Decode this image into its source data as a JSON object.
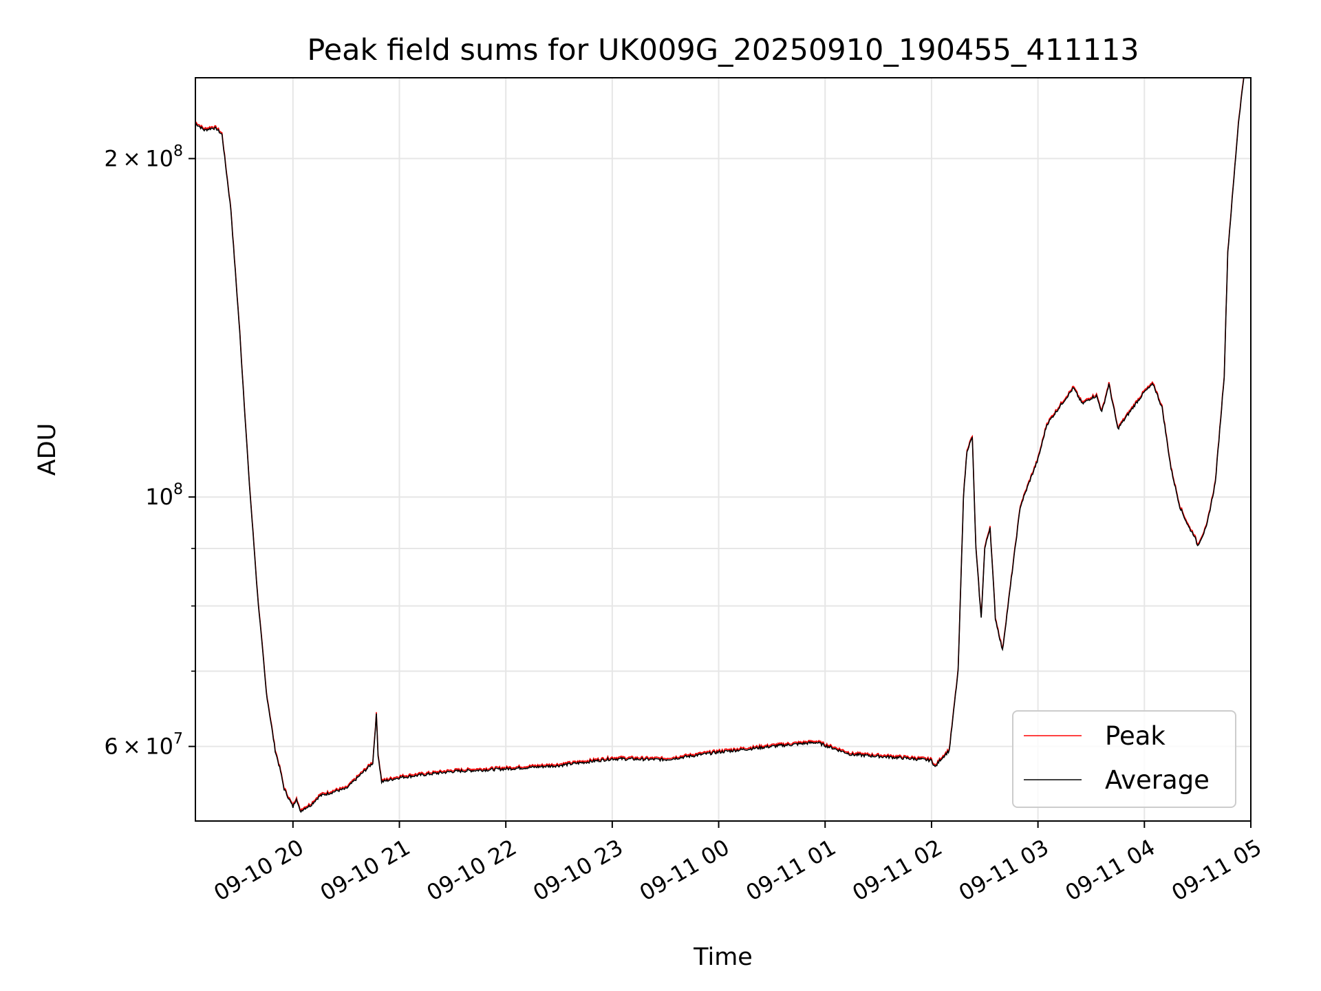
{
  "chart_data": {
    "type": "line",
    "title": "Peak field sums for UK009G_20250910_190455_411113",
    "xlabel": "Time",
    "ylabel": "ADU",
    "y_scale": "log",
    "ylim": [
      51500000,
      236000000
    ],
    "xlim": [
      "09-10 19:05",
      "09-11 05:00"
    ],
    "x_ticks": [
      "09-10 20",
      "09-10 21",
      "09-10 22",
      "09-10 23",
      "09-11 00",
      "09-11 01",
      "09-11 02",
      "09-11 03",
      "09-11 04",
      "09-11 05"
    ],
    "y_ticks": [
      {
        "value": 60000000,
        "mantissa": "6",
        "exponent": "7"
      },
      {
        "value": 100000000,
        "mantissa": "",
        "exponent": "8"
      },
      {
        "value": 200000000,
        "mantissa": "2",
        "exponent": "8"
      }
    ],
    "y_minor_ticks": [
      70000000,
      80000000,
      90000000
    ],
    "grid": true,
    "legend_position": "lower-right",
    "series": [
      {
        "name": "Peak",
        "color": "#ff0000"
      },
      {
        "name": "Average",
        "color": "#000000"
      }
    ],
    "x": [
      "09-10 19:05",
      "09-10 19:10",
      "09-10 19:15",
      "09-10 19:17",
      "09-10 19:20",
      "09-10 19:25",
      "09-10 19:30",
      "09-10 19:35",
      "09-10 19:40",
      "09-10 19:45",
      "09-10 19:50",
      "09-10 19:53",
      "09-10 19:55",
      "09-10 20:00",
      "09-10 20:02",
      "09-10 20:04",
      "09-10 20:06",
      "09-10 20:10",
      "09-10 20:15",
      "09-10 20:20",
      "09-10 20:25",
      "09-10 20:30",
      "09-10 20:35",
      "09-10 20:45",
      "09-10 20:47",
      "09-10 20:48",
      "09-10 20:50",
      "09-10 21:00",
      "09-10 21:30",
      "09-10 22:00",
      "09-10 22:30",
      "09-10 23:00",
      "09-10 23:30",
      "09-11 00:00",
      "09-11 00:30",
      "09-11 00:55",
      "09-11 01:15",
      "09-11 01:30",
      "09-11 01:50",
      "09-11 02:00",
      "09-11 02:02",
      "09-11 02:05",
      "09-11 02:10",
      "09-11 02:15",
      "09-11 02:18",
      "09-11 02:20",
      "09-11 02:23",
      "09-11 02:25",
      "09-11 02:28",
      "09-11 02:30",
      "09-11 02:33",
      "09-11 02:36",
      "09-11 02:40",
      "09-11 02:50",
      "09-11 02:55",
      "09-11 03:00",
      "09-11 03:05",
      "09-11 03:15",
      "09-11 03:20",
      "09-11 03:25",
      "09-11 03:30",
      "09-11 03:33",
      "09-11 03:36",
      "09-11 03:40",
      "09-11 03:45",
      "09-11 03:55",
      "09-11 04:00",
      "09-11 04:05",
      "09-11 04:10",
      "09-11 04:15",
      "09-11 04:20",
      "09-11 04:25",
      "09-11 04:28",
      "09-11 04:30",
      "09-11 04:35",
      "09-11 04:40",
      "09-11 04:45",
      "09-11 04:47",
      "09-11 04:50",
      "09-11 04:53",
      "09-11 04:56"
    ],
    "average": [
      215000000,
      212000000,
      213000000,
      212500000,
      210000000,
      180000000,
      140000000,
      105000000,
      82000000,
      67000000,
      59500000,
      57000000,
      55000000,
      53000000,
      54000000,
      52500000,
      52800000,
      53200000,
      54200000,
      54500000,
      54800000,
      55000000,
      56000000,
      58000000,
      64000000,
      59000000,
      55800000,
      56300000,
      57000000,
      57300000,
      57700000,
      58500000,
      58400000,
      59300000,
      60000000,
      60500000,
      59000000,
      58800000,
      58500000,
      58300000,
      57500000,
      58400000,
      59500000,
      70000000,
      100000000,
      110000000,
      113000000,
      90000000,
      78000000,
      90000000,
      94000000,
      78000000,
      73000000,
      98000000,
      103000000,
      108000000,
      116000000,
      122000000,
      125000000,
      121000000,
      122500000,
      123000000,
      119000000,
      126000000,
      115000000,
      121000000,
      124000000,
      126000000,
      120000000,
      106000000,
      98000000,
      94000000,
      92500000,
      90500000,
      94000000,
      103000000,
      128000000,
      165000000,
      188000000,
      215000000,
      236000000
    ]
  }
}
